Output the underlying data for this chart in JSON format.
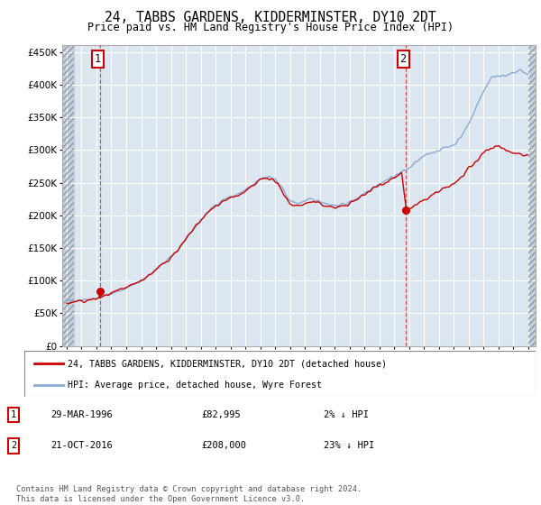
{
  "title": "24, TABBS GARDENS, KIDDERMINSTER, DY10 2DT",
  "subtitle": "Price paid vs. HM Land Registry's House Price Index (HPI)",
  "ylim": [
    0,
    460000
  ],
  "yticks": [
    0,
    50000,
    100000,
    150000,
    200000,
    250000,
    300000,
    350000,
    400000,
    450000
  ],
  "xlim_start": 1993.7,
  "xlim_end": 2025.5,
  "hatch_left_end": 1994.5,
  "hatch_right_start": 2025.0,
  "bg_plot": "#dce6f0",
  "grid_color": "#ffffff",
  "line_color_property": "#cc0000",
  "line_color_hpi": "#88aad4",
  "marker_color": "#cc0000",
  "sale1_x": 1996.23,
  "sale1_y": 82995,
  "sale2_x": 2016.8,
  "sale2_y": 208000,
  "legend_property": "24, TABBS GARDENS, KIDDERMINSTER, DY10 2DT (detached house)",
  "legend_hpi": "HPI: Average price, detached house, Wyre Forest",
  "footer1": "Contains HM Land Registry data © Crown copyright and database right 2024.",
  "footer2": "This data is licensed under the Open Government Licence v3.0.",
  "table_row1": [
    "1",
    "29-MAR-1996",
    "£82,995",
    "2% ↓ HPI"
  ],
  "table_row2": [
    "2",
    "21-OCT-2016",
    "£208,000",
    "23% ↓ HPI"
  ],
  "hpi_keypoints": [
    [
      1994.0,
      68000
    ],
    [
      1994.5,
      70000
    ],
    [
      1995.0,
      71000
    ],
    [
      1995.5,
      72000
    ],
    [
      1996.0,
      73000
    ],
    [
      1996.5,
      76000
    ],
    [
      1997.0,
      80000
    ],
    [
      1997.5,
      84000
    ],
    [
      1998.0,
      89000
    ],
    [
      1998.5,
      94000
    ],
    [
      1999.0,
      100000
    ],
    [
      1999.5,
      108000
    ],
    [
      2000.0,
      116000
    ],
    [
      2000.5,
      126000
    ],
    [
      2001.0,
      136000
    ],
    [
      2001.5,
      148000
    ],
    [
      2002.0,
      162000
    ],
    [
      2002.5,
      178000
    ],
    [
      2003.0,
      192000
    ],
    [
      2003.5,
      205000
    ],
    [
      2004.0,
      216000
    ],
    [
      2004.5,
      224000
    ],
    [
      2005.0,
      228000
    ],
    [
      2005.5,
      232000
    ],
    [
      2006.0,
      238000
    ],
    [
      2006.5,
      246000
    ],
    [
      2007.0,
      256000
    ],
    [
      2007.5,
      260000
    ],
    [
      2008.0,
      255000
    ],
    [
      2008.5,
      240000
    ],
    [
      2009.0,
      222000
    ],
    [
      2009.5,
      218000
    ],
    [
      2010.0,
      222000
    ],
    [
      2010.5,
      224000
    ],
    [
      2011.0,
      222000
    ],
    [
      2011.5,
      218000
    ],
    [
      2012.0,
      215000
    ],
    [
      2012.5,
      216000
    ],
    [
      2013.0,
      220000
    ],
    [
      2013.5,
      226000
    ],
    [
      2014.0,
      234000
    ],
    [
      2014.5,
      242000
    ],
    [
      2015.0,
      248000
    ],
    [
      2015.5,
      254000
    ],
    [
      2016.0,
      260000
    ],
    [
      2016.5,
      266000
    ],
    [
      2017.0,
      272000
    ],
    [
      2017.5,
      282000
    ],
    [
      2018.0,
      290000
    ],
    [
      2018.5,
      296000
    ],
    [
      2019.0,
      300000
    ],
    [
      2019.5,
      304000
    ],
    [
      2020.0,
      308000
    ],
    [
      2020.5,
      320000
    ],
    [
      2021.0,
      340000
    ],
    [
      2021.5,
      365000
    ],
    [
      2022.0,
      390000
    ],
    [
      2022.5,
      410000
    ],
    [
      2023.0,
      415000
    ],
    [
      2023.5,
      412000
    ],
    [
      2024.0,
      418000
    ],
    [
      2024.5,
      422000
    ],
    [
      2025.0,
      415000
    ]
  ],
  "prop_keypoints": [
    [
      1994.0,
      65000
    ],
    [
      1994.5,
      67000
    ],
    [
      1995.0,
      68000
    ],
    [
      1995.5,
      70000
    ],
    [
      1996.0,
      72000
    ],
    [
      1996.5,
      76000
    ],
    [
      1997.0,
      80000
    ],
    [
      1997.5,
      84000
    ],
    [
      1998.0,
      89000
    ],
    [
      1998.5,
      94000
    ],
    [
      1999.0,
      100000
    ],
    [
      1999.5,
      108000
    ],
    [
      2000.0,
      116000
    ],
    [
      2000.5,
      126000
    ],
    [
      2001.0,
      136000
    ],
    [
      2001.5,
      148000
    ],
    [
      2002.0,
      162000
    ],
    [
      2002.5,
      178000
    ],
    [
      2003.0,
      192000
    ],
    [
      2003.5,
      204000
    ],
    [
      2004.0,
      214000
    ],
    [
      2004.5,
      222000
    ],
    [
      2005.0,
      226000
    ],
    [
      2005.5,
      230000
    ],
    [
      2006.0,
      236000
    ],
    [
      2006.5,
      244000
    ],
    [
      2007.0,
      254000
    ],
    [
      2007.5,
      258000
    ],
    [
      2008.0,
      252000
    ],
    [
      2008.5,
      236000
    ],
    [
      2009.0,
      218000
    ],
    [
      2009.5,
      214000
    ],
    [
      2010.0,
      218000
    ],
    [
      2010.5,
      220000
    ],
    [
      2011.0,
      218000
    ],
    [
      2011.5,
      214000
    ],
    [
      2012.0,
      212000
    ],
    [
      2012.5,
      213000
    ],
    [
      2013.0,
      218000
    ],
    [
      2013.5,
      224000
    ],
    [
      2014.0,
      232000
    ],
    [
      2014.5,
      240000
    ],
    [
      2015.0,
      246000
    ],
    [
      2015.5,
      252000
    ],
    [
      2016.0,
      258000
    ],
    [
      2016.5,
      264000
    ],
    [
      2016.8,
      208000
    ],
    [
      2017.0,
      210000
    ],
    [
      2017.5,
      216000
    ],
    [
      2018.0,
      222000
    ],
    [
      2018.5,
      230000
    ],
    [
      2019.0,
      236000
    ],
    [
      2019.5,
      242000
    ],
    [
      2020.0,
      248000
    ],
    [
      2020.5,
      258000
    ],
    [
      2021.0,
      270000
    ],
    [
      2021.5,
      282000
    ],
    [
      2022.0,
      295000
    ],
    [
      2022.5,
      304000
    ],
    [
      2023.0,
      306000
    ],
    [
      2023.5,
      300000
    ],
    [
      2024.0,
      296000
    ],
    [
      2024.5,
      294000
    ],
    [
      2025.0,
      292000
    ]
  ]
}
